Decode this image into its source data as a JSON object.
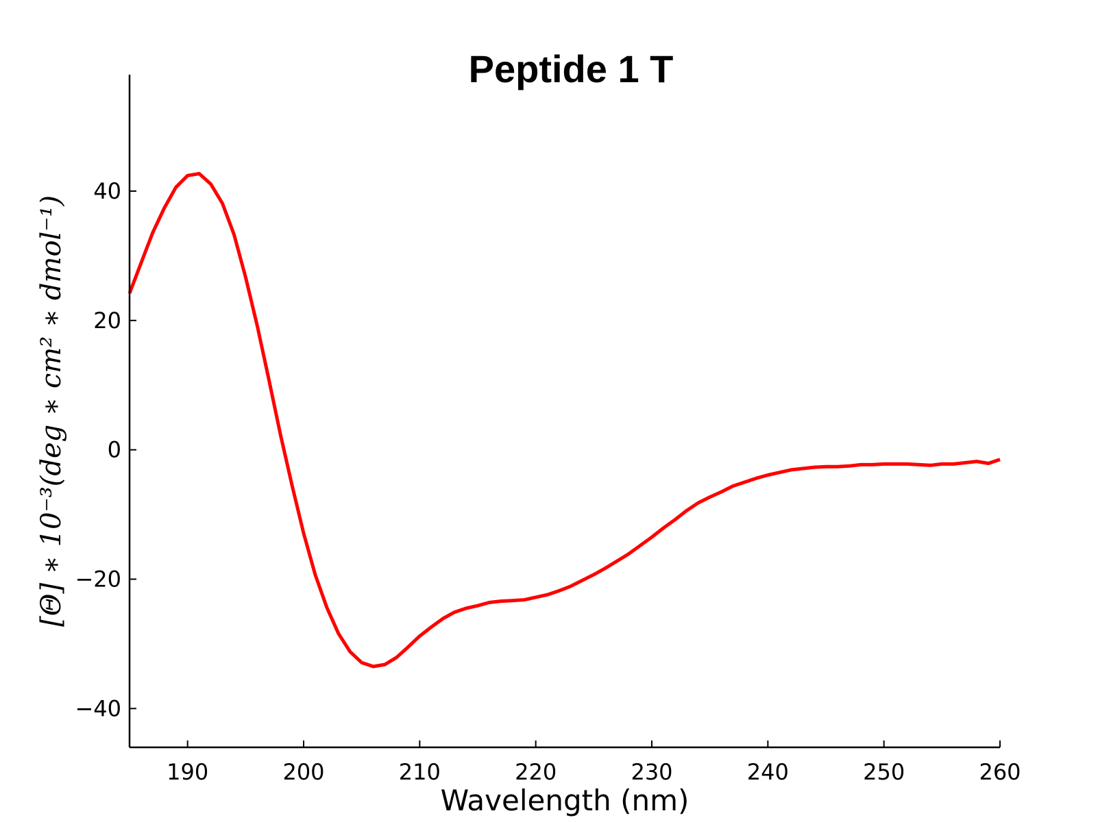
{
  "chart_data": {
    "type": "line",
    "title": "Peptide 1 T",
    "xlabel": "Wavelength (nm)",
    "ylabel": "[Θ] ∗ 10⁻³(deg ∗ cm² ∗ dmol⁻¹)",
    "xlim": [
      185,
      260
    ],
    "ylim": [
      -46,
      58
    ],
    "xticks": [
      190,
      200,
      210,
      220,
      230,
      240,
      250,
      260
    ],
    "xtick_labels": [
      "190",
      "200",
      "210",
      "220",
      "230",
      "240",
      "250",
      "260"
    ],
    "yticks": [
      -40,
      -20,
      0,
      20,
      40
    ],
    "ytick_labels": [
      "−40",
      "−20",
      "0",
      "20",
      "40"
    ],
    "grid": false,
    "series": [
      {
        "color": "#ff0000",
        "x": [
          185,
          186,
          187,
          188,
          189,
          190,
          191,
          192,
          193,
          194,
          195,
          196,
          197,
          198,
          199,
          200,
          201,
          202,
          203,
          204,
          205,
          206,
          207,
          208,
          209,
          210,
          211,
          212,
          213,
          214,
          215,
          216,
          217,
          218,
          219,
          220,
          221,
          222,
          223,
          224,
          225,
          226,
          227,
          228,
          229,
          230,
          231,
          232,
          233,
          234,
          235,
          236,
          237,
          238,
          239,
          240,
          241,
          242,
          243,
          244,
          245,
          246,
          247,
          248,
          249,
          250,
          251,
          252,
          253,
          254,
          255,
          256,
          257,
          258,
          259,
          260
        ],
        "y": [
          24.2,
          28.9,
          33.6,
          37.4,
          40.6,
          42.4,
          42.7,
          41.1,
          38.1,
          33.3,
          26.7,
          19.2,
          10.9,
          2.4,
          -5.5,
          -12.9,
          -19.3,
          -24.4,
          -28.4,
          -31.2,
          -32.9,
          -33.5,
          -33.2,
          -32.1,
          -30.5,
          -28.8,
          -27.4,
          -26.1,
          -25.1,
          -24.5,
          -24.1,
          -23.6,
          -23.4,
          -23.3,
          -23.2,
          -22.8,
          -22.4,
          -21.8,
          -21.1,
          -20.2,
          -19.3,
          -18.3,
          -17.2,
          -16.1,
          -14.8,
          -13.5,
          -12.1,
          -10.8,
          -9.4,
          -8.2,
          -7.3,
          -6.5,
          -5.6,
          -5.0,
          -4.4,
          -3.9,
          -3.5,
          -3.1,
          -2.9,
          -2.7,
          -2.6,
          -2.6,
          -2.5,
          -2.3,
          -2.3,
          -2.2,
          -2.2,
          -2.2,
          -2.3,
          -2.4,
          -2.2,
          -2.2,
          -2.0,
          -1.8,
          -2.1,
          -1.5
        ]
      }
    ]
  }
}
